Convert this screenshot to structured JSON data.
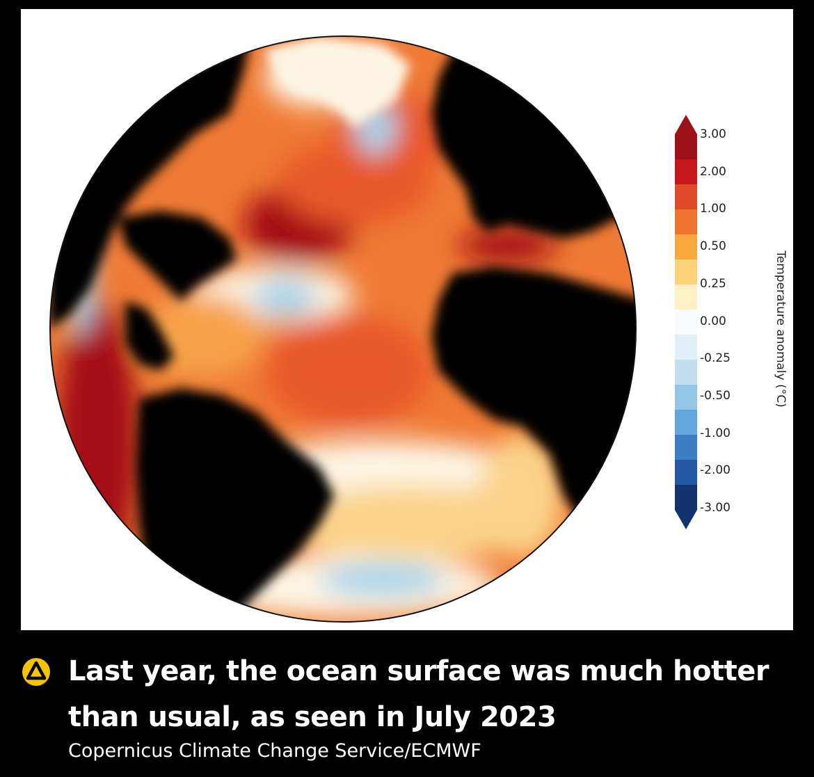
{
  "map": {
    "ocean_colors": {
      "very_warm": "#a50f15",
      "warm_dark": "#c8321a",
      "warm": "#e8592a",
      "warm_mid": "#ef7a34",
      "mild": "#f6a24a",
      "slight": "#fbd38a",
      "neutral": "#fdf5e4",
      "cool": "#a9d3ea",
      "cold": "#4e8dc8"
    },
    "land_color": "#000000"
  },
  "legend": {
    "title": "Temperature anomaly (°C)",
    "ticks": [
      "3.00",
      "2.00",
      "1.00",
      "0.50",
      "0.25",
      "0.00",
      "-0.25",
      "-0.50",
      "-1.00",
      "-2.00",
      "-3.00"
    ],
    "bins": [
      "#9b1019",
      "#c5161c",
      "#e04a28",
      "#ef7330",
      "#f9a83e",
      "#fbd27a",
      "#fdf1c4",
      "#f7fbfd",
      "#e1eff8",
      "#c3dfef",
      "#93c6e7",
      "#5fa7dc",
      "#3a7fc2",
      "#2356a3",
      "#13336f"
    ]
  },
  "caption": {
    "icon": "warning-triangle-icon",
    "icon_color": "#f5c400",
    "title": "Last year, the ocean surface was much hotter than usual, as seen in July 2023",
    "credit": "Copernicus Climate Change Service/ECMWF"
  }
}
